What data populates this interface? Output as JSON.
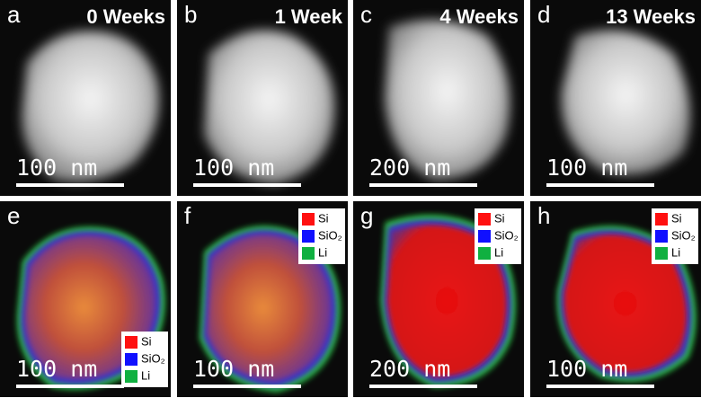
{
  "images": [
    {
      "letter": "a",
      "title": "0 Weeks",
      "scale": "100 nm"
    },
    {
      "letter": "b",
      "title": "1 Week",
      "scale": "100 nm"
    },
    {
      "letter": "c",
      "title": "4 Weeks",
      "scale": "200 nm"
    },
    {
      "letter": "d",
      "title": "13 Weeks",
      "scale": "100 nm"
    }
  ],
  "maps": [
    {
      "letter": "e",
      "scale": "100 nm",
      "legend": [
        "Si",
        "SiO₂",
        "Li"
      ]
    },
    {
      "letter": "f",
      "scale": "100 nm",
      "legend": [
        "Si",
        "SiO₂",
        "Li"
      ]
    },
    {
      "letter": "g",
      "scale": "200 nm",
      "legend": [
        "Si",
        "SiO₂",
        "Li"
      ]
    },
    {
      "letter": "h",
      "scale": "100 nm",
      "legend": [
        "Si",
        "SiO₂",
        "Li"
      ]
    }
  ]
}
